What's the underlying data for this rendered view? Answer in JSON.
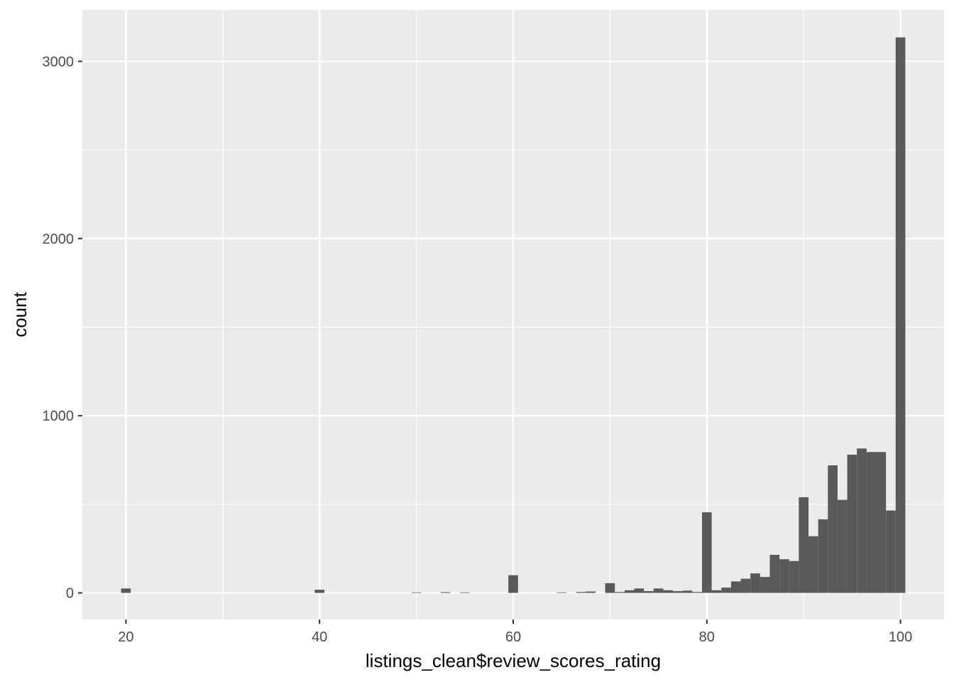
{
  "chart_data": {
    "type": "bar",
    "subtype": "histogram",
    "xlabel": "listings_clean$review_scores_rating",
    "ylabel": "count",
    "xlim": [
      15.5,
      104.5
    ],
    "ylim": [
      -150,
      3290
    ],
    "x_ticks": [
      20,
      40,
      60,
      80,
      100
    ],
    "y_ticks": [
      0,
      1000,
      2000,
      3000
    ],
    "x_minor_ticks": [
      30,
      50,
      70,
      90
    ],
    "y_minor_ticks": [
      500,
      1500,
      2500
    ],
    "grid": true,
    "bar_color": "#595959",
    "panel_color": "#ebebeb",
    "grid_color": "#ffffff",
    "bins": [
      {
        "x": 20,
        "count": 25
      },
      {
        "x": 40,
        "count": 18
      },
      {
        "x": 50,
        "count": 3
      },
      {
        "x": 53,
        "count": 4
      },
      {
        "x": 55,
        "count": 3
      },
      {
        "x": 60,
        "count": 100
      },
      {
        "x": 65,
        "count": 3
      },
      {
        "x": 67,
        "count": 5
      },
      {
        "x": 68,
        "count": 8
      },
      {
        "x": 70,
        "count": 55
      },
      {
        "x": 71,
        "count": 5
      },
      {
        "x": 72,
        "count": 15
      },
      {
        "x": 73,
        "count": 25
      },
      {
        "x": 74,
        "count": 10
      },
      {
        "x": 75,
        "count": 25
      },
      {
        "x": 76,
        "count": 15
      },
      {
        "x": 77,
        "count": 10
      },
      {
        "x": 78,
        "count": 13
      },
      {
        "x": 79,
        "count": 5
      },
      {
        "x": 80,
        "count": 455
      },
      {
        "x": 81,
        "count": 15
      },
      {
        "x": 82,
        "count": 30
      },
      {
        "x": 83,
        "count": 65
      },
      {
        "x": 84,
        "count": 80
      },
      {
        "x": 85,
        "count": 110
      },
      {
        "x": 86,
        "count": 90
      },
      {
        "x": 87,
        "count": 215
      },
      {
        "x": 88,
        "count": 190
      },
      {
        "x": 89,
        "count": 180
      },
      {
        "x": 90,
        "count": 540
      },
      {
        "x": 91,
        "count": 320
      },
      {
        "x": 92,
        "count": 415
      },
      {
        "x": 93,
        "count": 720
      },
      {
        "x": 94,
        "count": 525
      },
      {
        "x": 95,
        "count": 780
      },
      {
        "x": 96,
        "count": 815
      },
      {
        "x": 97,
        "count": 795
      },
      {
        "x": 98,
        "count": 795
      },
      {
        "x": 99,
        "count": 465
      },
      {
        "x": 100,
        "count": 3135
      }
    ]
  }
}
